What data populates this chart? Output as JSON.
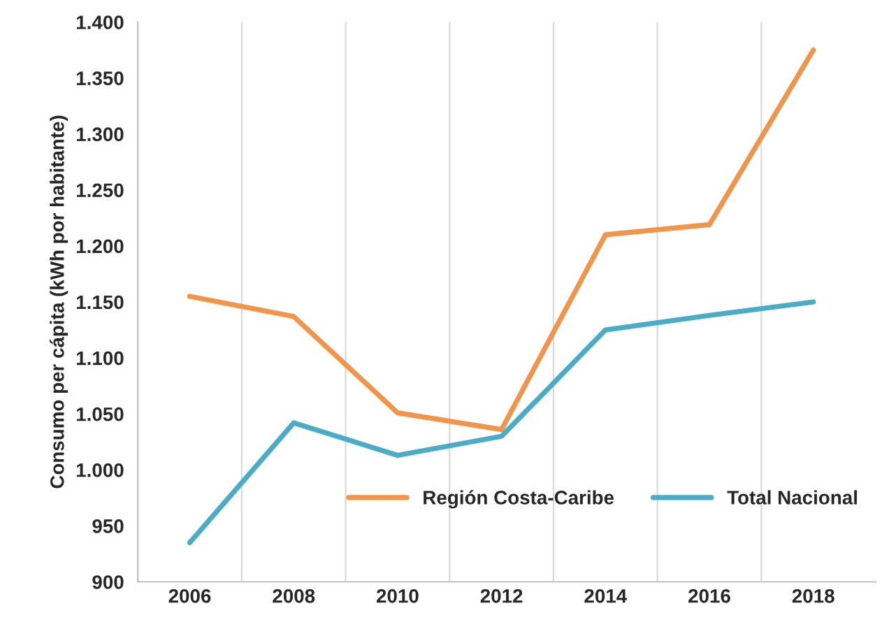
{
  "chart_data": {
    "type": "line",
    "ylabel": "Consumo per cápita (kWh por habitante)",
    "categories": [
      "2006",
      "2008",
      "2010",
      "2012",
      "2014",
      "2016",
      "2018"
    ],
    "series": [
      {
        "name": "Región Costa-Caribe",
        "color": "#f0954a",
        "values": [
          1155,
          1137,
          1051,
          1036,
          1210,
          1219,
          1375
        ]
      },
      {
        "name": "Total Nacional",
        "color": "#4bacc6",
        "values": [
          935,
          1042,
          1013,
          1030,
          1125,
          1138,
          1150
        ]
      }
    ],
    "ylim": [
      900,
      1400
    ],
    "yticks": [
      900,
      950,
      {
        "value": 1000,
        "label": "1.000"
      },
      {
        "value": 1050,
        "label": "1.050"
      },
      {
        "value": 1100,
        "label": "1.100"
      },
      {
        "value": 1150,
        "label": "1.150"
      },
      {
        "value": 1200,
        "label": "1.200"
      },
      {
        "value": 1250,
        "label": "1.250"
      },
      {
        "value": 1300,
        "label": "1.300"
      },
      {
        "value": 1350,
        "label": "1.350"
      },
      {
        "value": 1400,
        "label": "1.400"
      }
    ],
    "grid": "x",
    "legend": "bottom right",
    "marker": "none",
    "line_style": "solid"
  }
}
